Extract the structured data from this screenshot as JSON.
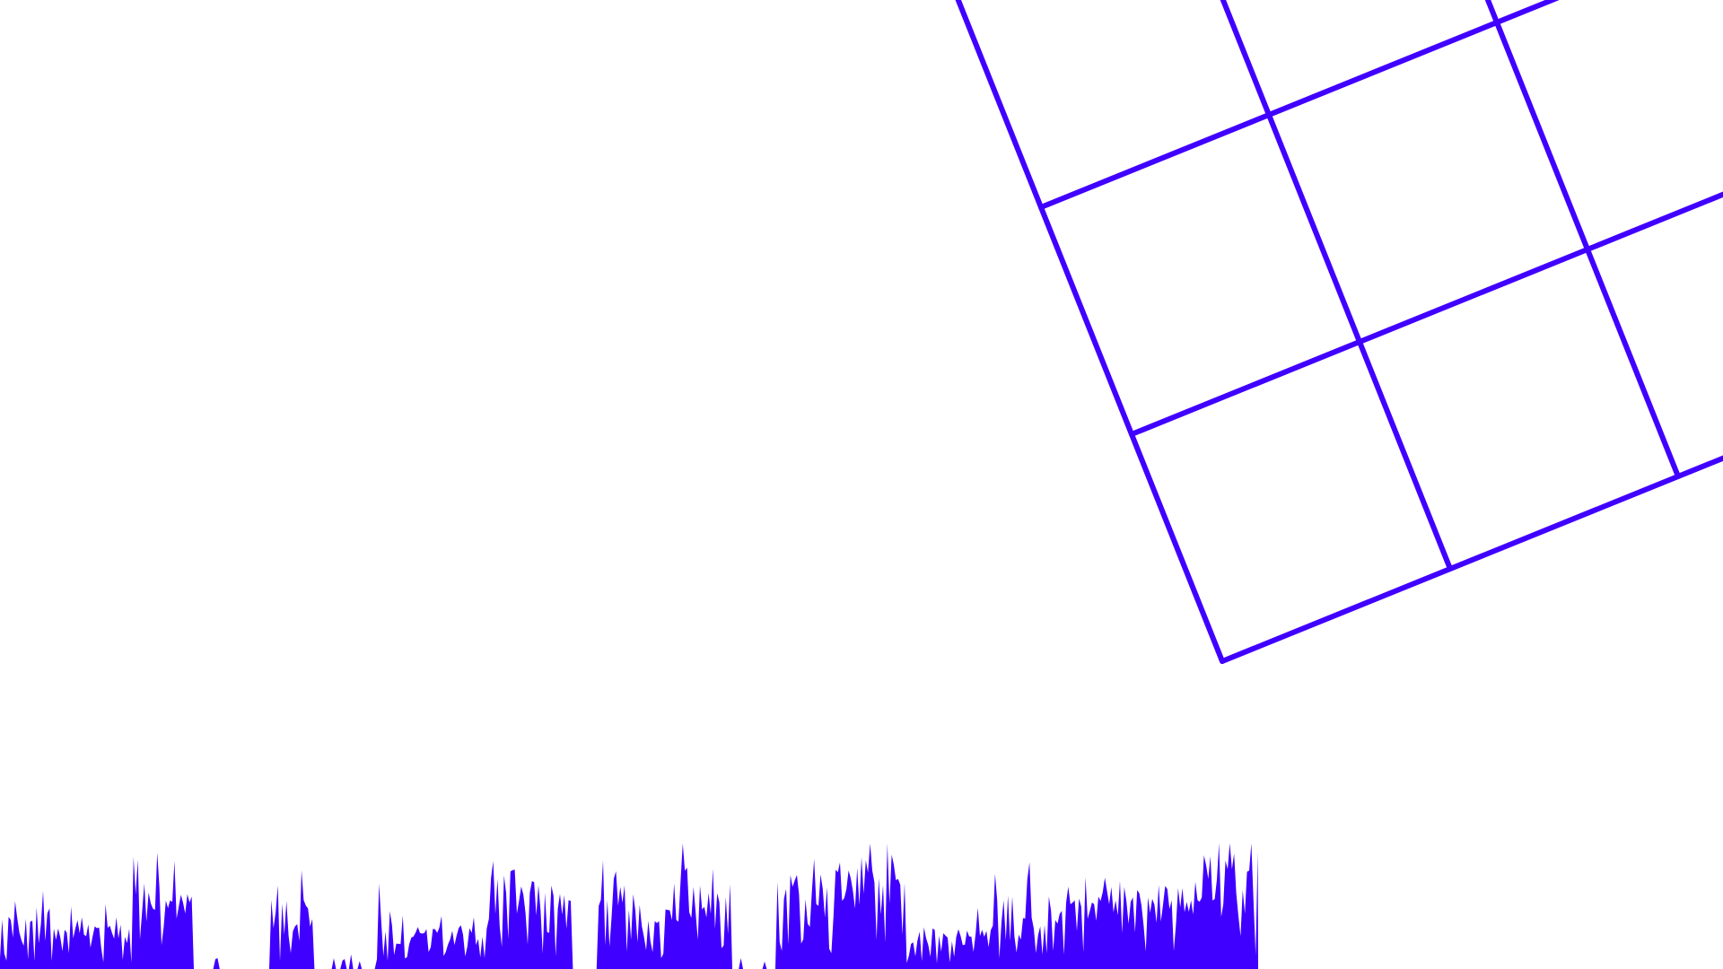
{
  "canvas": {
    "background_color": "#ffffff"
  },
  "grid": {
    "stroke_color": "#4000ff",
    "shape": "rotated square grid"
  },
  "waveform": {
    "fill_color": "#4000ff",
    "shape": "audio waveform silhouette"
  }
}
